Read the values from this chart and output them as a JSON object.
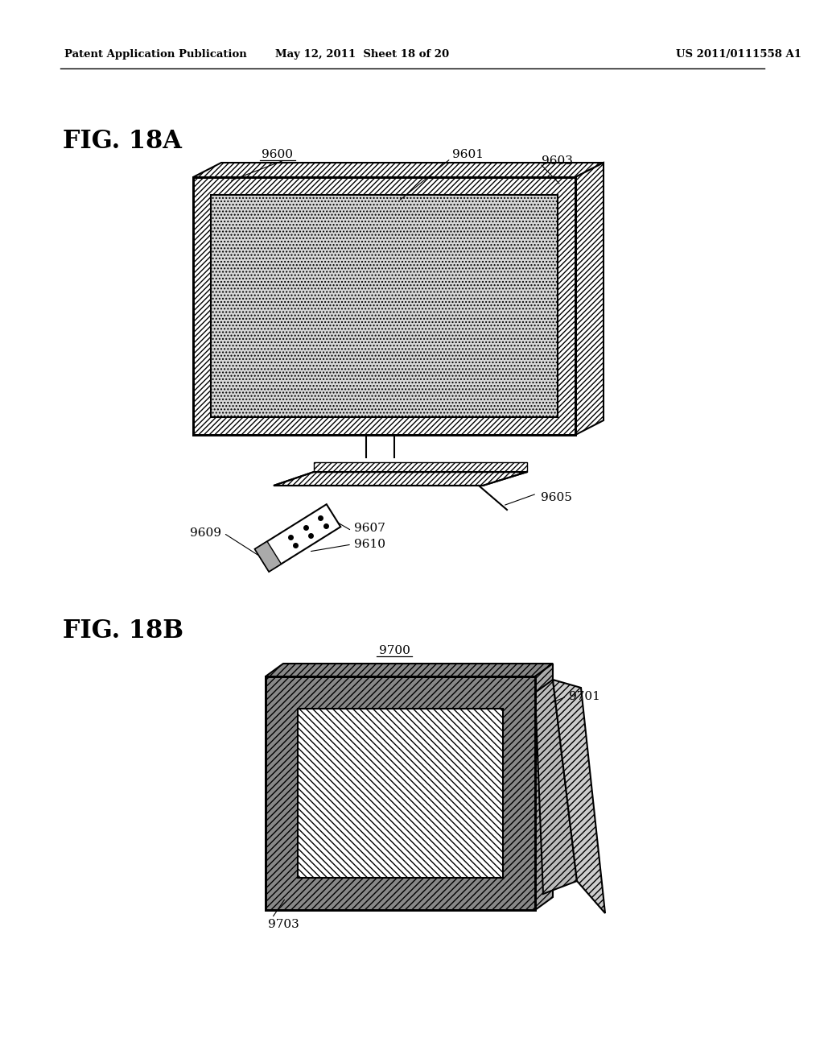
{
  "background_color": "#ffffff",
  "header_left": "Patent Application Publication",
  "header_center": "May 12, 2011  Sheet 18 of 20",
  "header_right": "US 2011/0111558 A1",
  "fig18a_label": "FIG. 18A",
  "fig18b_label": "FIG. 18B"
}
